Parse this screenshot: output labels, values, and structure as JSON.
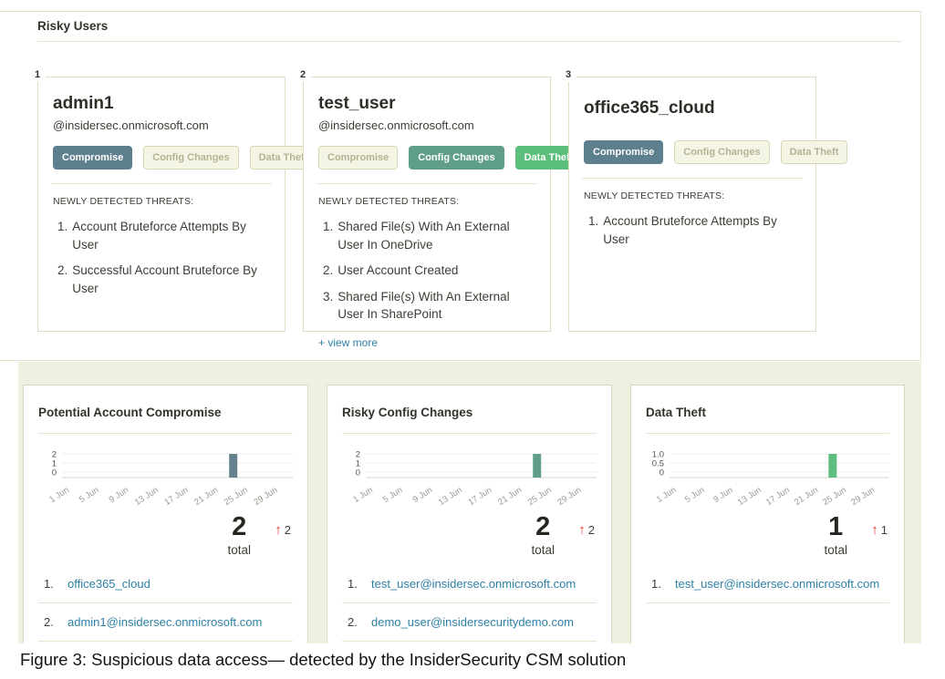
{
  "section": {
    "title": "Risky Users"
  },
  "caption": {
    "text": "Figure 3: Suspicious data access— detected by the InsiderSecurity CSM solution"
  },
  "icons": {
    "trend_up": "↑"
  },
  "colors": {
    "badge_active_compromise": "#5d7f8e",
    "badge_active_config_changes": "#5f9f89",
    "badge_active_data_theft": "#5cbe7d",
    "badge_inactive_bg": "#f5f5e5",
    "badge_inactive_text": "#b6b294",
    "band_background": "#eef0e0",
    "link": "#2d80a5",
    "trend_arrow_red": "#e8352c",
    "bar_compromise": "#67828e",
    "bar_config_changes": "#5f9f89",
    "bar_data_theft": "#5fbd7e"
  },
  "risky_users": [
    {
      "number": "1",
      "name": "admin1",
      "email": "@insidersec.onmicrosoft.com",
      "badges": [
        {
          "label": "Compromise",
          "active": true,
          "color": "#5d7f8e"
        },
        {
          "label": "Config Changes",
          "active": false,
          "color": ""
        },
        {
          "label": "Data Theft",
          "active": false,
          "color": ""
        }
      ],
      "threats_heading": "NEWLY DETECTED THREATS:",
      "threats": [
        "Account Bruteforce Attempts By User",
        "Successful Account Bruteforce By User"
      ],
      "view_more": ""
    },
    {
      "number": "2",
      "name": "test_user",
      "email": "@insidersec.onmicrosoft.com",
      "badges": [
        {
          "label": "Compromise",
          "active": false,
          "color": ""
        },
        {
          "label": "Config Changes",
          "active": true,
          "color": "#5f9f89"
        },
        {
          "label": "Data Theft",
          "active": true,
          "color": "#5cbe7d"
        }
      ],
      "threats_heading": "NEWLY DETECTED THREATS:",
      "threats": [
        "Shared File(s) With An External User In OneDrive",
        "User Account Created",
        "Shared File(s) With An External User In SharePoint"
      ],
      "view_more": "+ view more"
    },
    {
      "number": "3",
      "name": "office365_cloud",
      "email": "",
      "badges": [
        {
          "label": "Compromise",
          "active": true,
          "color": "#5d7f8e"
        },
        {
          "label": "Config Changes",
          "active": false,
          "color": ""
        },
        {
          "label": "Data Theft",
          "active": false,
          "color": ""
        }
      ],
      "threats_heading": "NEWLY DETECTED THREATS:",
      "threats": [
        "Account Bruteforce Attempts By User"
      ],
      "view_more": ""
    }
  ],
  "panels": [
    {
      "title": "Potential Account Compromise",
      "total": "2",
      "total_label": "total",
      "delta": "2",
      "users": [
        "office365_cloud",
        "admin1@insidersec.onmicrosoft.com"
      ]
    },
    {
      "title": "Risky Config Changes",
      "total": "2",
      "total_label": "total",
      "delta": "2",
      "users": [
        "test_user@insidersec.onmicrosoft.com",
        "demo_user@insidersecuritydemo.com"
      ]
    },
    {
      "title": "Data Theft",
      "total": "1",
      "total_label": "total",
      "delta": "1",
      "users": [
        "test_user@insidersec.onmicrosoft.com"
      ]
    }
  ],
  "chart_data": [
    {
      "type": "bar",
      "title": "Potential Account Compromise",
      "x_ticks": [
        {
          "day": 1,
          "label": "1 Jun"
        },
        {
          "day": 5,
          "label": "5 Jun"
        },
        {
          "day": 9,
          "label": "9 Jun"
        },
        {
          "day": 13,
          "label": "13 Jun"
        },
        {
          "day": 17,
          "label": "17 Jun"
        },
        {
          "day": 21,
          "label": "21 Jun"
        },
        {
          "day": 25,
          "label": "25 Jun"
        },
        {
          "day": 29,
          "label": "29 Jun"
        }
      ],
      "x_range_days": [
        0,
        31
      ],
      "y_ticks": [
        {
          "value": 2,
          "label": "2"
        },
        {
          "value": 1,
          "label": "1"
        },
        {
          "value": 0,
          "label": "0"
        }
      ],
      "ylim": [
        0,
        2
      ],
      "bars": [
        {
          "date": "23 Jun",
          "day": 23,
          "value": 2
        }
      ],
      "bar_color": "#67828e",
      "grid": true,
      "legend": false
    },
    {
      "type": "bar",
      "title": "Risky Config Changes",
      "x_ticks": [
        {
          "day": 1,
          "label": "1 Jun"
        },
        {
          "day": 5,
          "label": "5 Jun"
        },
        {
          "day": 9,
          "label": "9 Jun"
        },
        {
          "day": 13,
          "label": "13 Jun"
        },
        {
          "day": 17,
          "label": "17 Jun"
        },
        {
          "day": 21,
          "label": "21 Jun"
        },
        {
          "day": 25,
          "label": "25 Jun"
        },
        {
          "day": 29,
          "label": "29 Jun"
        }
      ],
      "x_range_days": [
        0,
        31
      ],
      "y_ticks": [
        {
          "value": 2,
          "label": "2"
        },
        {
          "value": 1,
          "label": "1"
        },
        {
          "value": 0,
          "label": "0"
        }
      ],
      "ylim": [
        0,
        2
      ],
      "bars": [
        {
          "date": "23 Jun",
          "day": 23,
          "value": 2
        }
      ],
      "bar_color": "#5f9f89",
      "grid": true,
      "legend": false
    },
    {
      "type": "bar",
      "title": "Data Theft",
      "x_ticks": [
        {
          "day": 1,
          "label": "1 Jun"
        },
        {
          "day": 5,
          "label": "5 Jun"
        },
        {
          "day": 9,
          "label": "9 Jun"
        },
        {
          "day": 13,
          "label": "13 Jun"
        },
        {
          "day": 17,
          "label": "17 Jun"
        },
        {
          "day": 21,
          "label": "21 Jun"
        },
        {
          "day": 25,
          "label": "25 Jun"
        },
        {
          "day": 29,
          "label": "29 Jun"
        }
      ],
      "x_range_days": [
        0,
        31
      ],
      "y_ticks": [
        {
          "value": 1,
          "label": "1.0"
        },
        {
          "value": 0.5,
          "label": "0.5"
        },
        {
          "value": 0,
          "label": "0"
        }
      ],
      "ylim": [
        0,
        1
      ],
      "bars": [
        {
          "date": "23 Jun",
          "day": 23,
          "value": 1
        }
      ],
      "bar_color": "#5fbd7e",
      "grid": true,
      "legend": false
    }
  ]
}
